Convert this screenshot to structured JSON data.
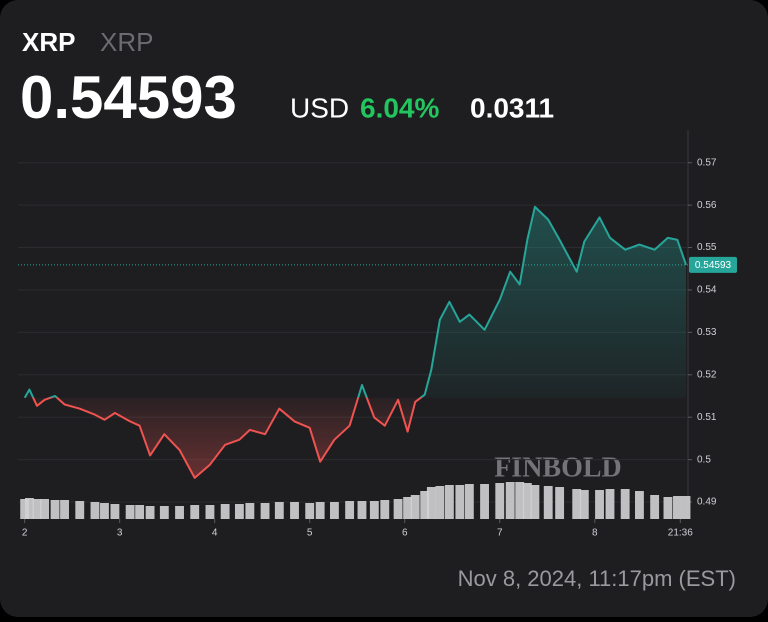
{
  "chart_data": {
    "type": "line",
    "title": "XRP",
    "subtitle": "XRP",
    "price": 0.54593,
    "currency": "USD",
    "change_percent": "6.04%",
    "change": "0.0311",
    "watermark": "FINBOLD",
    "footer": "Nov 8, 2024, 11:17pm (EST)",
    "up_color": "#26a69a",
    "down_color": "#ef5350",
    "volume_color": "#d1d1d4",
    "grid": true,
    "x": [
      2.0,
      2.05,
      2.13,
      2.21,
      2.32,
      2.42,
      2.58,
      2.74,
      2.84,
      2.95,
      3.11,
      3.21,
      3.32,
      3.47,
      3.63,
      3.79,
      3.95,
      4.11,
      4.26,
      4.37,
      4.53,
      4.68,
      4.84,
      5.0,
      5.11,
      5.26,
      5.42,
      5.55,
      5.68,
      5.79,
      5.93,
      6.03,
      6.11,
      6.21,
      6.28,
      6.37,
      6.47,
      6.58,
      6.68,
      6.84,
      7.0,
      7.11,
      7.21,
      7.29,
      7.37,
      7.51,
      7.63,
      7.81,
      7.89,
      8.05,
      8.16,
      8.32,
      8.47,
      8.63,
      8.77,
      8.87,
      8.96
    ],
    "values": [
      0.5146,
      0.5165,
      0.5127,
      0.5141,
      0.515,
      0.513,
      0.512,
      0.5106,
      0.5094,
      0.511,
      0.509,
      0.508,
      0.501,
      0.506,
      0.5023,
      0.4957,
      0.4988,
      0.5035,
      0.5047,
      0.507,
      0.506,
      0.512,
      0.509,
      0.5075,
      0.4995,
      0.5047,
      0.508,
      0.5176,
      0.5099,
      0.508,
      0.5141,
      0.5066,
      0.5136,
      0.5153,
      0.5212,
      0.533,
      0.5372,
      0.5325,
      0.5342,
      0.5306,
      0.5377,
      0.5443,
      0.5413,
      0.5518,
      0.5596,
      0.5566,
      0.5518,
      0.5443,
      0.5514,
      0.5571,
      0.5523,
      0.5495,
      0.5507,
      0.5495,
      0.5523,
      0.5518,
      0.54593
    ],
    "volume": [
      20,
      21,
      20,
      20,
      19,
      19,
      18,
      17,
      16,
      15,
      14,
      14,
      13,
      13,
      13,
      14,
      14,
      15,
      15,
      16,
      16,
      17,
      17,
      16,
      17,
      17,
      18,
      18,
      18,
      19,
      20,
      22,
      24,
      28,
      32,
      33,
      34,
      34,
      35,
      35,
      36,
      37,
      37,
      36,
      34,
      33,
      32,
      30,
      29,
      29,
      30,
      30,
      28,
      24,
      22,
      23,
      23
    ],
    "xlim": [
      1.93,
      8.96
    ],
    "xticks": [
      2,
      3,
      4,
      5,
      6,
      7,
      8,
      {
        "value": 8.9,
        "label": "21:36"
      }
    ],
    "ylim": [
      0.486,
      0.573
    ],
    "yticks": [
      0.49,
      0.5,
      0.51,
      0.52,
      0.53,
      0.54,
      0.55,
      0.56,
      0.57
    ]
  }
}
